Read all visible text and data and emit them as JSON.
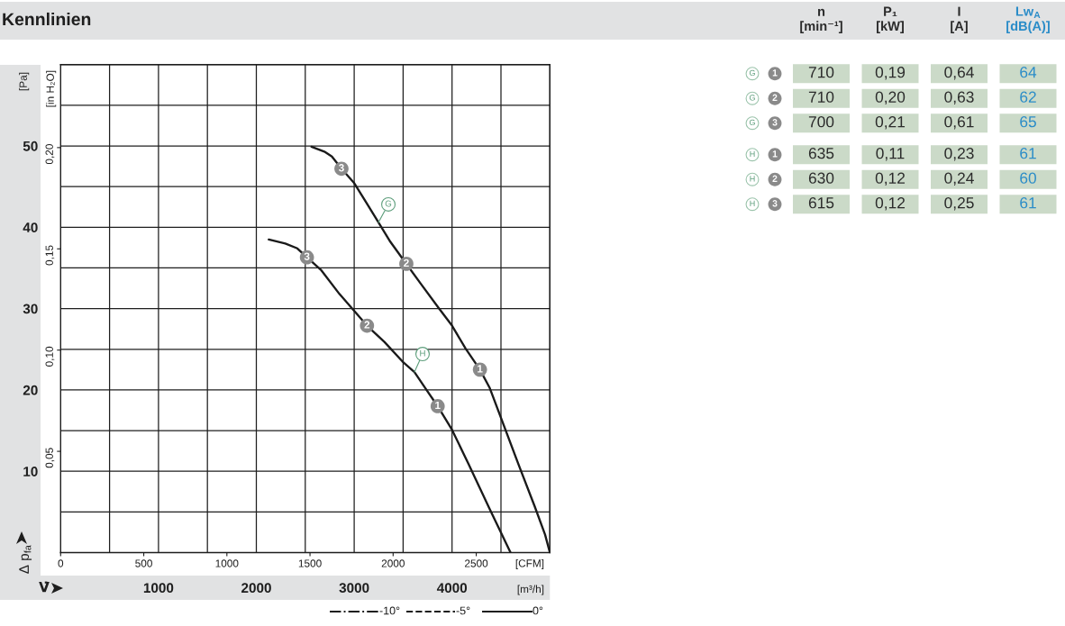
{
  "chart_data": [
    {
      "type": "line",
      "title": "Kennlinien",
      "xlabel": "[m³/h]",
      "x2label": "[CFM]",
      "ylabel": "[Pa]",
      "y2label": "[in H₂O]",
      "xlim": [
        0,
        5000
      ],
      "xticks": [
        {
          "value": 0,
          "label": null
        },
        {
          "value": 500,
          "label": null
        },
        1000,
        {
          "value": 1500,
          "label": null
        },
        2000,
        {
          "value": 2500,
          "label": null
        },
        3000,
        {
          "value": 3500,
          "label": null
        },
        4000,
        {
          "value": 4500,
          "label": null
        },
        {
          "value": 5000,
          "label": null
        }
      ],
      "x2lim": [
        0,
        2943
      ],
      "x2ticks": [
        0,
        500,
        1000,
        1500,
        2000,
        2500
      ],
      "ylim": [
        0,
        60
      ],
      "yticks": [
        {
          "value": 0,
          "label": null
        },
        {
          "value": 5,
          "label": null
        },
        10,
        {
          "value": 15,
          "label": null
        },
        20,
        {
          "value": 25,
          "label": null
        },
        30,
        {
          "value": 35,
          "label": null
        },
        40,
        {
          "value": 45,
          "label": null
        },
        50,
        {
          "value": 55,
          "label": null
        },
        {
          "value": 60,
          "label": null
        }
      ],
      "y2lim": [
        0,
        0.241
      ],
      "y2ticks": [
        {
          "value": 0.05,
          "label": "0,05"
        },
        {
          "value": 0.1,
          "label": "0,10"
        },
        {
          "value": 0.15,
          "label": "0,15"
        },
        {
          "value": 0.2,
          "label": "0,20"
        }
      ],
      "grid": true,
      "line_style": "solid",
      "series": [
        {
          "name": "G",
          "color": "#1a1a1a",
          "x": [
            2563,
            2695,
            2772,
            2870,
            3002,
            3125,
            3248,
            3370,
            3533,
            3678,
            3862,
            4000,
            4138,
            4285,
            4383,
            4690,
            4844,
            4951,
            5000
          ],
          "values": [
            49.9,
            49.3,
            48.7,
            47.2,
            45.4,
            43.0,
            40.6,
            38.2,
            35.5,
            33.1,
            30.1,
            27.9,
            25.1,
            22.5,
            20.3,
            10.5,
            5.7,
            2.2,
            0
          ]
        },
        {
          "name": "H",
          "color": "#1a1a1a",
          "x": [
            2127,
            2296,
            2419,
            2517,
            2665,
            2849,
            3131,
            3309,
            3493,
            3616,
            3739,
            3853,
            4000,
            4168,
            4383,
            4598
          ],
          "values": [
            38.5,
            38.0,
            37.4,
            36.3,
            34.7,
            31.8,
            27.9,
            25.9,
            23.5,
            22.2,
            20.0,
            18.0,
            15.1,
            10.9,
            5.4,
            0
          ]
        }
      ],
      "annotations": [
        "Δ p$_{fa}$",
        "V̇",
        "-10°",
        "-5°",
        "0°",
        {
          "text": "3",
          "x": 2870,
          "y": 47.2
        },
        {
          "text": "2",
          "x": 3533,
          "y": 35.5
        },
        {
          "text": "1",
          "x": 4285,
          "y": 22.5
        },
        {
          "text": "3",
          "x": 2517,
          "y": 36.3
        },
        {
          "text": "2",
          "x": 3131,
          "y": 27.9
        },
        {
          "text": "1",
          "x": 3853,
          "y": 18.0
        }
      ]
    },
    {
      "type": "other",
      "categories": [
        "n\n[min⁻¹]",
        "P₁\n[kW]",
        "I\n[A]",
        "Lw$_{A}$\n[dB(A)]"
      ],
      "y_categories": [
        "G",
        "G",
        "G",
        "H",
        "H",
        "H"
      ],
      "y2_categories": [
        "1",
        "2",
        "3",
        "1",
        "2",
        "3"
      ],
      "cell_labels": [
        [
          "710",
          "0,19",
          "0,64",
          "64"
        ],
        [
          "710",
          "0,20",
          "0,63",
          "62"
        ],
        [
          "700",
          "0,21",
          "0,61",
          "65"
        ],
        [
          "635",
          "0,11",
          "0,23",
          "61"
        ],
        [
          "630",
          "0,12",
          "0,24",
          "60"
        ],
        [
          "615",
          "0,12",
          "0,25",
          "61"
        ]
      ],
      "color": "#cbdac8",
      "colors": [
        "#2b2b2b",
        "#2b2b2b",
        "#2b2b2b",
        "#2a8cc8"
      ]
    }
  ]
}
